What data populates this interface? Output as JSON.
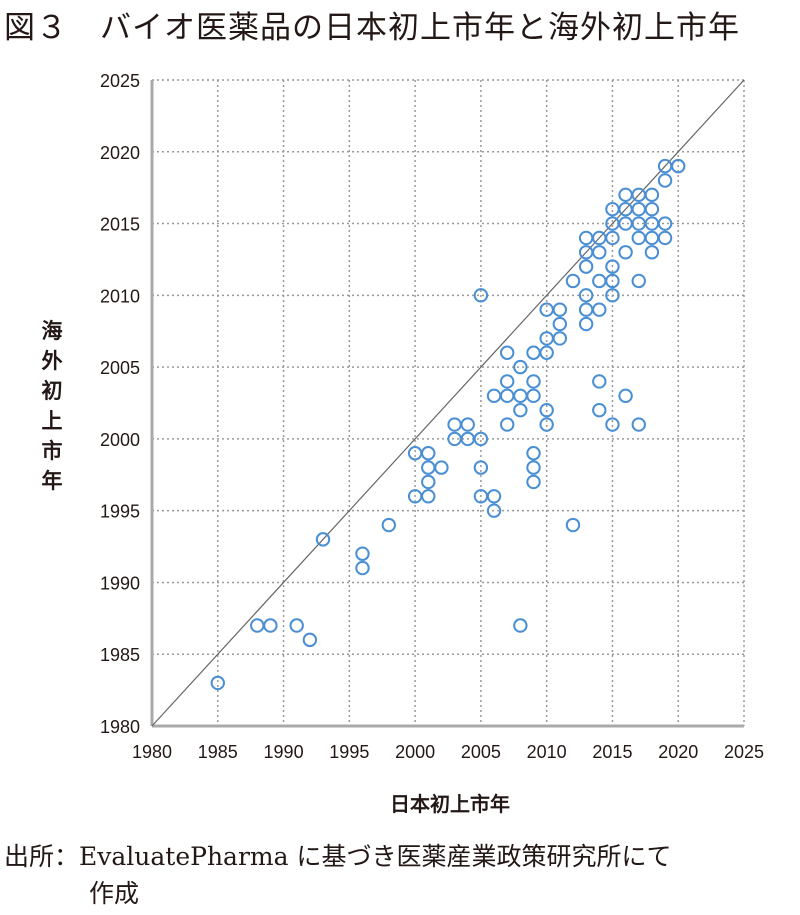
{
  "title": "図３　バイオ医薬品の日本初上市年と海外初上市年",
  "source": {
    "line1": "出所：EvaluatePharma に基づき医薬産業政策研究所にて",
    "line2": "作成"
  },
  "chart_data": {
    "type": "scatter",
    "title": "図３　バイオ医薬品の日本初上市年と海外初上市年",
    "xlabel": "日本初上市年",
    "ylabel": "海外初上市年",
    "xlim": [
      1980,
      2025
    ],
    "ylim": [
      1980,
      2025
    ],
    "xticks": [
      1980,
      1985,
      1990,
      1995,
      2000,
      2005,
      2010,
      2015,
      2020,
      2025
    ],
    "yticks": [
      1980,
      1985,
      1990,
      1995,
      2000,
      2005,
      2010,
      2015,
      2020,
      2025
    ],
    "grid": true,
    "reference_line": "y = x",
    "marker": "open circle",
    "color": "#4a8fd4",
    "points": [
      [
        1985,
        1983
      ],
      [
        1988,
        1987
      ],
      [
        1989,
        1987
      ],
      [
        1991,
        1987
      ],
      [
        1992,
        1986
      ],
      [
        1993,
        1993
      ],
      [
        1996,
        1992
      ],
      [
        1996,
        1991
      ],
      [
        1998,
        1994
      ],
      [
        2000,
        1999
      ],
      [
        2000,
        1996
      ],
      [
        2001,
        1999
      ],
      [
        2001,
        1998
      ],
      [
        2001,
        1997
      ],
      [
        2001,
        1996
      ],
      [
        2002,
        1998
      ],
      [
        2003,
        2001
      ],
      [
        2003,
        2000
      ],
      [
        2004,
        2001
      ],
      [
        2004,
        2000
      ],
      [
        2005,
        2000
      ],
      [
        2005,
        1998
      ],
      [
        2005,
        1996
      ],
      [
        2006,
        1996
      ],
      [
        2006,
        1995
      ],
      [
        2005,
        2010
      ],
      [
        2006,
        2003
      ],
      [
        2007,
        2006
      ],
      [
        2007,
        2004
      ],
      [
        2007,
        2003
      ],
      [
        2007,
        2001
      ],
      [
        2008,
        2005
      ],
      [
        2008,
        2003
      ],
      [
        2008,
        2002
      ],
      [
        2008,
        1987
      ],
      [
        2009,
        2006
      ],
      [
        2009,
        2004
      ],
      [
        2009,
        2003
      ],
      [
        2009,
        1999
      ],
      [
        2009,
        1998
      ],
      [
        2009,
        1997
      ],
      [
        2010,
        2009
      ],
      [
        2010,
        2007
      ],
      [
        2010,
        2006
      ],
      [
        2010,
        2002
      ],
      [
        2010,
        2001
      ],
      [
        2011,
        2009
      ],
      [
        2011,
        2008
      ],
      [
        2011,
        2007
      ],
      [
        2012,
        2011
      ],
      [
        2012,
        1994
      ],
      [
        2013,
        2014
      ],
      [
        2013,
        2013
      ],
      [
        2013,
        2012
      ],
      [
        2013,
        2010
      ],
      [
        2013,
        2009
      ],
      [
        2013,
        2008
      ],
      [
        2014,
        2014
      ],
      [
        2014,
        2013
      ],
      [
        2014,
        2011
      ],
      [
        2014,
        2009
      ],
      [
        2014,
        2004
      ],
      [
        2014,
        2002
      ],
      [
        2015,
        2016
      ],
      [
        2015,
        2015
      ],
      [
        2015,
        2014
      ],
      [
        2015,
        2012
      ],
      [
        2015,
        2011
      ],
      [
        2015,
        2010
      ],
      [
        2015,
        2001
      ],
      [
        2016,
        2017
      ],
      [
        2016,
        2016
      ],
      [
        2016,
        2015
      ],
      [
        2016,
        2013
      ],
      [
        2016,
        2003
      ],
      [
        2017,
        2017
      ],
      [
        2017,
        2016
      ],
      [
        2017,
        2015
      ],
      [
        2017,
        2014
      ],
      [
        2017,
        2011
      ],
      [
        2017,
        2001
      ],
      [
        2018,
        2017
      ],
      [
        2018,
        2016
      ],
      [
        2018,
        2015
      ],
      [
        2018,
        2014
      ],
      [
        2018,
        2013
      ],
      [
        2019,
        2019
      ],
      [
        2019,
        2018
      ],
      [
        2019,
        2015
      ],
      [
        2019,
        2014
      ],
      [
        2020,
        2019
      ]
    ]
  }
}
